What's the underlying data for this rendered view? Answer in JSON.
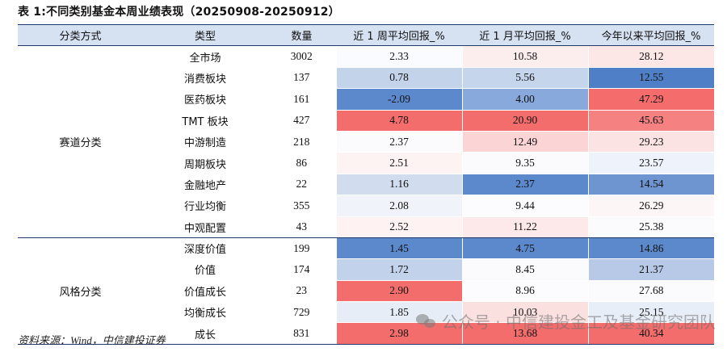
{
  "title": "表 1:不同类别基金本周业绩表现（20250908-20250912）",
  "columns": [
    "分类方式",
    "类型",
    "数量",
    "近 1 周平均回报_%",
    "近 1 月平均回报_%",
    "今年以来平均回报_%"
  ],
  "groups": [
    {
      "category": "赛道分类",
      "rows": [
        {
          "type": "全市场",
          "count": "3002",
          "w": "2.33",
          "m": "10.58",
          "y": "28.12",
          "wc": "#f9fbfe",
          "mc": "#fdeeee",
          "yc": "#fde6e6"
        },
        {
          "type": "消费板块",
          "count": "137",
          "w": "0.78",
          "m": "5.56",
          "y": "12.55",
          "wc": "#c3d3ea",
          "mc": "#c5d5ec",
          "yc": "#4f7fc6"
        },
        {
          "type": "医药板块",
          "count": "161",
          "w": "-2.09",
          "m": "4.00",
          "y": "47.29",
          "wc": "#5b89cb",
          "mc": "#87a9db",
          "yc": "#f46c6c"
        },
        {
          "type": "TMT 板块",
          "count": "427",
          "w": "4.78",
          "m": "20.90",
          "y": "45.63",
          "wc": "#f46d6d",
          "mc": "#f46d6d",
          "yc": "#f68181"
        },
        {
          "type": "中游制造",
          "count": "218",
          "w": "2.37",
          "m": "12.49",
          "y": "29.23",
          "wc": "#fbfbfd",
          "mc": "#fbd5d5",
          "yc": "#fce3e3"
        },
        {
          "type": "周期板块",
          "count": "86",
          "w": "2.51",
          "m": "9.35",
          "y": "23.57",
          "wc": "#fef3f3",
          "mc": "#fbfbfd",
          "yc": "#eef2fa"
        },
        {
          "type": "金融地产",
          "count": "22",
          "w": "1.16",
          "m": "2.37",
          "y": "14.54",
          "wc": "#d1dcef",
          "mc": "#5b89cb",
          "yc": "#6f95d0"
        },
        {
          "type": "行业均衡",
          "count": "355",
          "w": "2.08",
          "m": "9.44",
          "y": "26.29",
          "wc": "#f0f4fa",
          "mc": "#fcfcfe",
          "yc": "#fdf6f6"
        },
        {
          "type": "中观配置",
          "count": "43",
          "w": "2.52",
          "m": "11.22",
          "y": "25.38",
          "wc": "#fef2f2",
          "mc": "#fde9e9",
          "yc": "#fbfbfd"
        }
      ]
    },
    {
      "category": "风格分类",
      "rows": [
        {
          "type": "深度价值",
          "count": "199",
          "w": "1.45",
          "m": "4.75",
          "y": "14.86",
          "wc": "#5b89cb",
          "mc": "#5b89cb",
          "yc": "#5b89cb"
        },
        {
          "type": "价值",
          "count": "174",
          "w": "1.72",
          "m": "8.45",
          "y": "21.37",
          "wc": "#c2d2ea",
          "mc": "#fbfbfd",
          "yc": "#b7c9e6"
        },
        {
          "type": "价值成长",
          "count": "23",
          "w": "2.90",
          "m": "8.96",
          "y": "27.68",
          "wc": "#f46d6d",
          "mc": "#fcfcfe",
          "yc": "#fbfbfd"
        },
        {
          "type": "均衡成长",
          "count": "729",
          "w": "1.85",
          "m": "10.03",
          "y": "25.15",
          "wc": "#e6edf7",
          "mc": "#fbe0e0",
          "yc": "#e8eef8"
        },
        {
          "type": "成长",
          "count": "831",
          "w": "2.98",
          "m": "13.68",
          "y": "40.34",
          "wc": "#f46d6d",
          "mc": "#f46d6d",
          "yc": "#f46d6d"
        }
      ]
    }
  ],
  "source": "资料来源：Wind，中信建投证券",
  "watermark": "公众号 · 中信建投金工及基金研究团队",
  "icons": [
    "wechat-icon"
  ]
}
